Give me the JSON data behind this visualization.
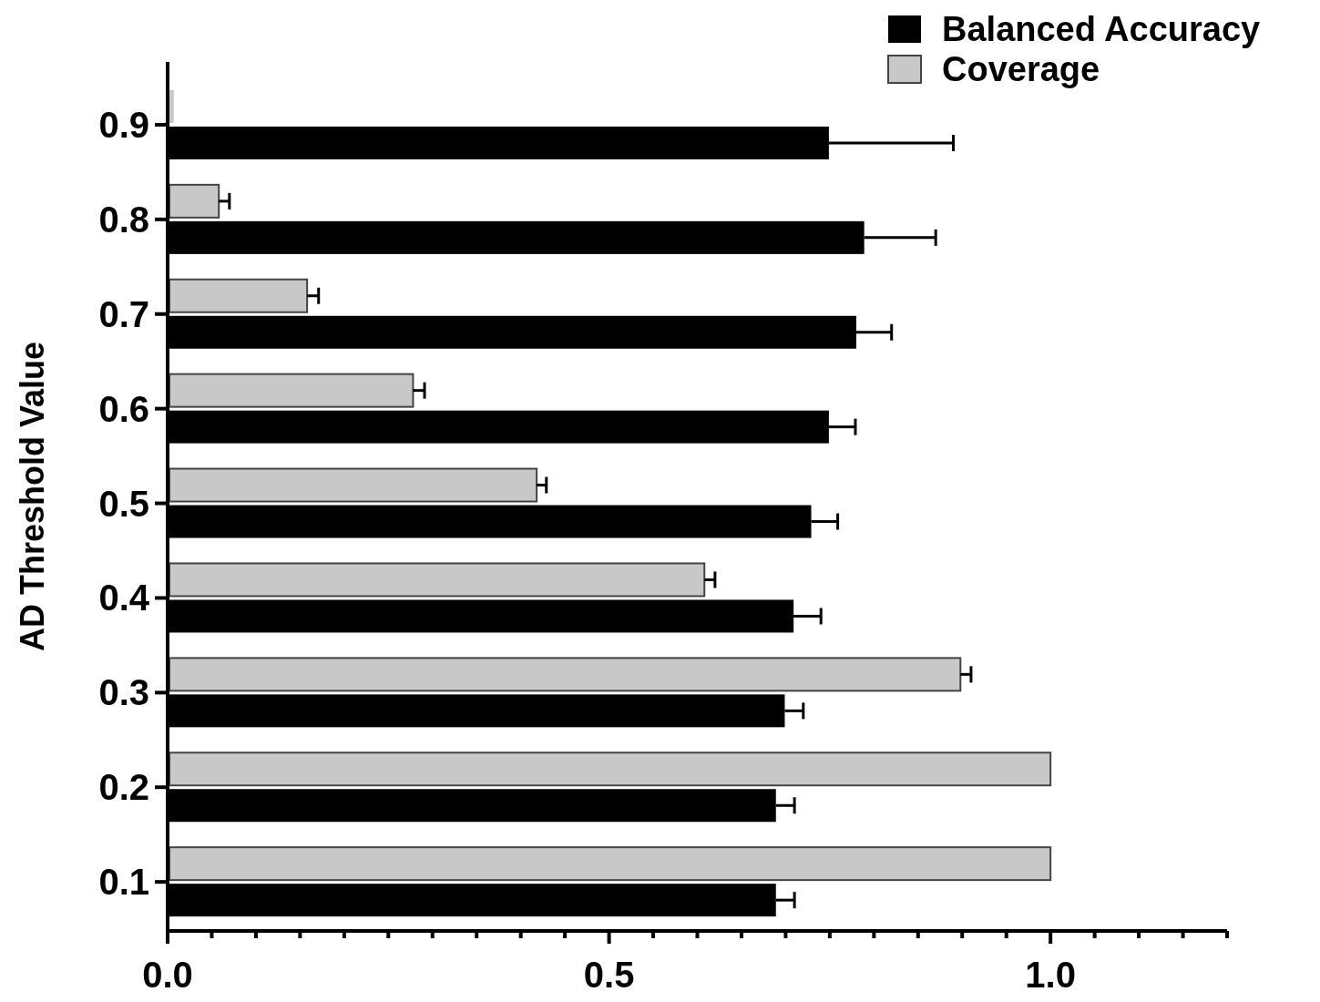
{
  "chart_data": {
    "type": "bar",
    "orientation": "horizontal",
    "ylabel": "AD Threshold Value",
    "categories": [
      "0.9",
      "0.8",
      "0.7",
      "0.6",
      "0.5",
      "0.4",
      "0.3",
      "0.2",
      "0.1"
    ],
    "series": [
      {
        "name": "Coverage",
        "color": "#c8c8c8",
        "values": [
          0.007,
          0.058,
          0.158,
          0.278,
          0.418,
          0.608,
          0.898,
          1.0,
          1.0
        ],
        "errors": [
          null,
          [
            0.058,
            0.07
          ],
          [
            0.158,
            0.171
          ],
          [
            0.278,
            0.291
          ],
          [
            0.418,
            0.429
          ],
          [
            0.608,
            0.62
          ],
          [
            0.898,
            0.91
          ],
          null,
          null
        ]
      },
      {
        "name": "Balanced Accuracy",
        "color": "#000000",
        "values": [
          0.749,
          0.789,
          0.78,
          0.749,
          0.729,
          0.709,
          0.699,
          0.689,
          0.689
        ],
        "errors": [
          [
            0.749,
            0.89
          ],
          [
            0.789,
            0.87
          ],
          [
            0.78,
            0.82
          ],
          [
            0.749,
            0.779
          ],
          [
            0.729,
            0.759
          ],
          [
            0.709,
            0.74
          ],
          [
            0.699,
            0.72
          ],
          [
            0.689,
            0.71
          ],
          [
            0.689,
            0.71
          ]
        ]
      }
    ],
    "xlim": [
      0,
      1.2
    ],
    "xticks": [
      {
        "value": 0,
        "label": "0.0"
      },
      {
        "value": 0.05,
        "label": null
      },
      {
        "value": 0.1,
        "label": null
      },
      {
        "value": 0.15,
        "label": null
      },
      {
        "value": 0.2,
        "label": null
      },
      {
        "value": 0.25,
        "label": null
      },
      {
        "value": 0.3,
        "label": null
      },
      {
        "value": 0.35,
        "label": null
      },
      {
        "value": 0.4,
        "label": null
      },
      {
        "value": 0.45,
        "label": null
      },
      {
        "value": 0.5,
        "label": "0.5"
      },
      {
        "value": 0.55,
        "label": null
      },
      {
        "value": 0.6,
        "label": null
      },
      {
        "value": 0.65,
        "label": null
      },
      {
        "value": 0.7,
        "label": null
      },
      {
        "value": 0.75,
        "label": null
      },
      {
        "value": 0.8,
        "label": null
      },
      {
        "value": 0.85,
        "label": null
      },
      {
        "value": 0.9,
        "label": null
      },
      {
        "value": 0.95,
        "label": null
      },
      {
        "value": 1,
        "label": "1.0"
      },
      {
        "value": 1.05,
        "label": null
      },
      {
        "value": 1.1,
        "label": null
      },
      {
        "value": 1.15,
        "label": null
      },
      {
        "value": 1.2,
        "label": null
      }
    ],
    "legend": "top right",
    "grid": false
  }
}
